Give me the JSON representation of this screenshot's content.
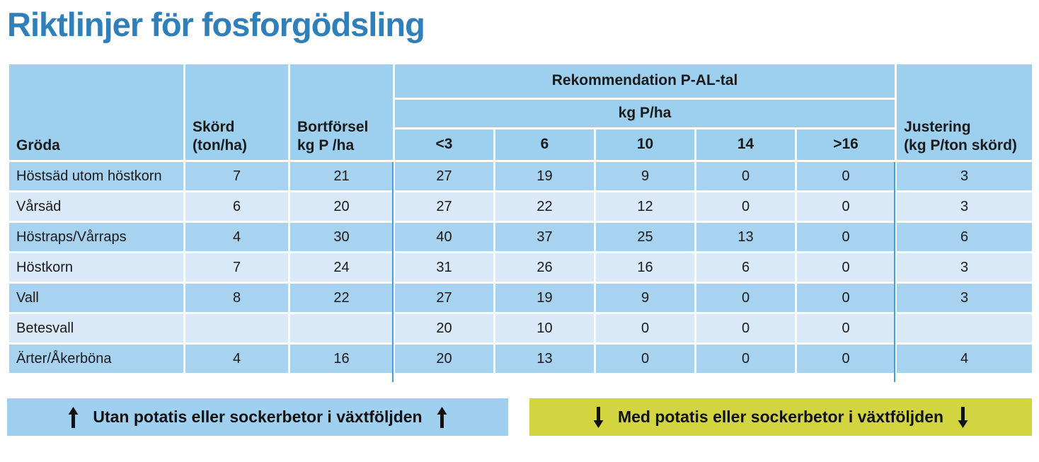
{
  "page_title": "Riktlinjer för fosforgödsling",
  "colors": {
    "title_blue": "#2E7FBA",
    "header_blue": "#9DCFEF",
    "row_dark_blue": "#A7D3F1",
    "row_light_blue": "#DAE9F8",
    "divider_blue": "#44A0DA",
    "banner_blue": "#9FD0EF",
    "banner_yellow": "#D2D440",
    "text_black": "#111111"
  },
  "table": {
    "col_headers": {
      "groda": "Gröda",
      "skord_line1": "Skörd",
      "skord_line2": "(ton/ha)",
      "bortforsel_line1": "Bortförsel",
      "bortforsel_line2": "kg P /ha",
      "rekommendation": "Rekommendation P-AL-tal",
      "unit": "kg P/ha",
      "pal_levels": [
        "<3",
        "6",
        "10",
        "14",
        ">16"
      ],
      "justering_line1": "Justering",
      "justering_line2": "(kg P/ton skörd)"
    },
    "rows": [
      {
        "groda": "Höstsäd utom höstkorn",
        "skord": "7",
        "bortforsel": "21",
        "pal": [
          "27",
          "19",
          "9",
          "0",
          "0"
        ],
        "justering": "3"
      },
      {
        "groda": "Vårsäd",
        "skord": "6",
        "bortforsel": "20",
        "pal": [
          "27",
          "22",
          "12",
          "0",
          "0"
        ],
        "justering": "3"
      },
      {
        "groda": "Höstraps/Vårraps",
        "skord": "4",
        "bortforsel": "30",
        "pal": [
          "40",
          "37",
          "25",
          "13",
          "0"
        ],
        "justering": "6"
      },
      {
        "groda": "Höstkorn",
        "skord": "7",
        "bortforsel": "24",
        "pal": [
          "31",
          "26",
          "16",
          "6",
          "0"
        ],
        "justering": "3"
      },
      {
        "groda": "Vall",
        "skord": "8",
        "bortforsel": "22",
        "pal": [
          "27",
          "19",
          "9",
          "0",
          "0"
        ],
        "justering": "3"
      },
      {
        "groda": "Betesvall",
        "skord": "",
        "bortforsel": "",
        "pal": [
          "20",
          "10",
          "0",
          "0",
          "0"
        ],
        "justering": ""
      },
      {
        "groda": "Ärter/Åkerböna",
        "skord": "4",
        "bortforsel": "16",
        "pal": [
          "20",
          "13",
          "0",
          "0",
          "0"
        ],
        "justering": "4"
      }
    ]
  },
  "banners": {
    "without": {
      "label": "Utan potatis eller sockerbetor i växtföljden",
      "direction": "up"
    },
    "with": {
      "label": "Med potatis eller sockerbetor i växtföljden",
      "direction": "down"
    }
  }
}
